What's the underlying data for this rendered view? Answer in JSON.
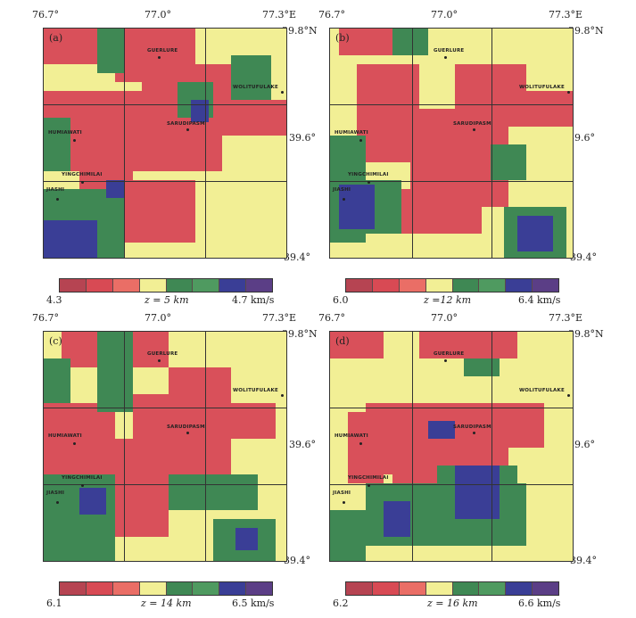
{
  "colors": [
    "#b64452",
    "#d84a54",
    "#ea6e66",
    "#f2ef95",
    "#3f8854",
    "#4f9a60",
    "#3a3e96",
    "#5b3e86"
  ],
  "panels": [
    {
      "letter": "(a)",
      "lon_left": "76.7°",
      "lon_mid": "77.0°",
      "lon_right": "77.3°E",
      "lat_top": "39.8°N",
      "lat_mid": "39.6°",
      "lat_bot": "39.4°",
      "legend_min": "4.3",
      "depth_label": "z = 5 km",
      "legend_max": "4.7 km/s",
      "places": {
        "guerlure": "GUERLURE",
        "wolitufulake": "WOLITUFULAKE",
        "sarudipasm": "SARUDIPASM",
        "humiawati": "HUMIAWATI",
        "yingchimilai": "YINGCHIMILAI",
        "jiashi": "JIASHI"
      }
    },
    {
      "letter": "(b)",
      "lon_left": "76.7°",
      "lon_mid": "77.0°",
      "lon_right": "77.3°E",
      "lat_top": "39.8°N",
      "lat_mid": "39.6°",
      "lat_bot": "39.4°",
      "legend_min": "6.0",
      "depth_label": "z =12 km",
      "legend_max": "6.4 km/s",
      "places": {
        "guerlure": "GUERLURE",
        "wolitufulake": "WOLITUFULAKE",
        "sarudipasm": "SARUDIPASM",
        "humiawati": "HUMIAWATI",
        "yingchimilai": "YINGCHIMILAI",
        "jiashi": "JIASHI"
      }
    },
    {
      "letter": "(c)",
      "lon_left": "76.7°",
      "lon_mid": "77.0°",
      "lon_right": "77.3°E",
      "lat_top": "39.8°N",
      "lat_mid": "39.6°",
      "lat_bot": "39.4°",
      "legend_min": "6.1",
      "depth_label": "z = 14 km",
      "legend_max": "6.5 km/s",
      "places": {
        "guerlure": "GUERLURE",
        "wolitufulake": "WOLITUFULAKE",
        "sarudipasm": "SARUDIPASM",
        "humiawati": "HUMIAWATI",
        "yingchimilai": "YINGCHIMILAI",
        "jiashi": "JIASHI"
      }
    },
    {
      "letter": "(d)",
      "lon_left": "76.7°",
      "lon_mid": "77.0°",
      "lon_right": "77.3°E",
      "lat_top": "39.8°N",
      "lat_mid": "39.6°",
      "lat_bot": "39.4°",
      "legend_min": "6.2",
      "depth_label": "z = 16 km",
      "legend_max": "6.6 km/s",
      "places": {
        "guerlure": "GUERLURE",
        "wolitufulake": "WOLITUFULAKE",
        "sarudipasm": "SARUDIPASM",
        "humiawati": "HUMIAWATI",
        "yingchimilai": "YINGCHIMILAI",
        "jiashi": "JIASHI"
      }
    }
  ]
}
